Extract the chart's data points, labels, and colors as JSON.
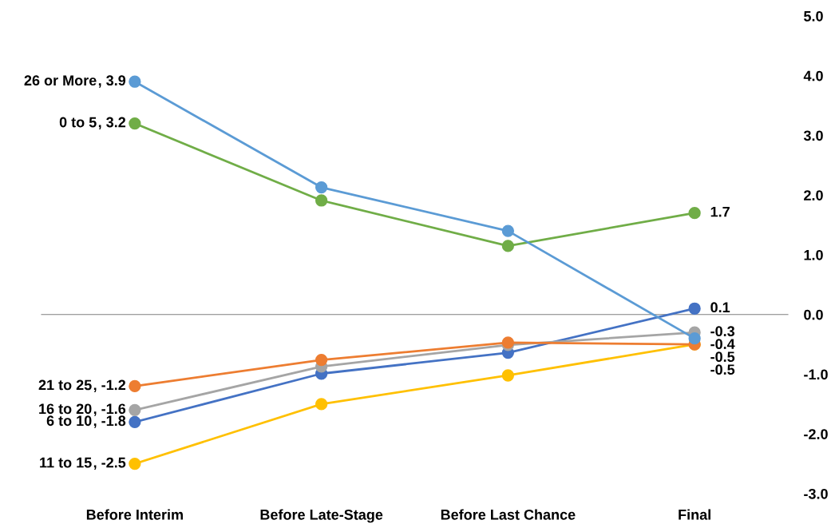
{
  "chart_data": {
    "type": "line",
    "categories": [
      "Before Interim",
      "Before Late-Stage",
      "Before Last Chance",
      "Final"
    ],
    "series": [
      {
        "name": "26 or More",
        "color": "#5b9bd5",
        "values": [
          3.9,
          2.13,
          1.4,
          -0.4
        ],
        "value_labels": [
          ", 3.9",
          null,
          null,
          "-0.4"
        ]
      },
      {
        "name": "0 to 5",
        "color": "#70ad47",
        "values": [
          3.2,
          1.91,
          1.15,
          1.7
        ],
        "value_labels": [
          ", 3.2",
          null,
          null,
          "1.7"
        ]
      },
      {
        "name": "21 to 25",
        "color": "#ed7d31",
        "values": [
          -1.2,
          -0.76,
          -0.47,
          -0.5
        ],
        "value_labels": [
          ", -1.2",
          null,
          null,
          "-0.5"
        ]
      },
      {
        "name": "16 to 20",
        "color": "#a5a5a5",
        "values": [
          -1.6,
          -0.87,
          -0.51,
          -0.3
        ],
        "value_labels": [
          ", -1.6",
          null,
          null,
          "-0.3"
        ]
      },
      {
        "name": "6 to 10",
        "color": "#4472c4",
        "values": [
          -1.8,
          -0.99,
          -0.64,
          0.1
        ],
        "value_labels": [
          ", -1.8",
          null,
          null,
          "0.1"
        ]
      },
      {
        "name": "11 to 15",
        "color": "#ffc000",
        "values": [
          -2.5,
          -1.5,
          -1.02,
          -0.5
        ],
        "value_labels": [
          ", -2.5",
          null,
          null,
          "-0.5"
        ]
      }
    ],
    "ylim": [
      -3,
      5
    ],
    "yticks": [
      {
        "value": 5,
        "label": "5.0"
      },
      {
        "value": 4,
        "label": "4.0"
      },
      {
        "value": 3,
        "label": "3.0"
      },
      {
        "value": 2,
        "label": "2.0"
      },
      {
        "value": 1,
        "label": "1.0"
      },
      {
        "value": 0,
        "label": "0.0"
      },
      {
        "value": -1,
        "label": "-1.0"
      },
      {
        "value": -2,
        "label": "-2.0"
      },
      {
        "value": -3,
        "label": "-3.0"
      }
    ],
    "legend": false,
    "marker": "circle",
    "line_style": "solid"
  }
}
